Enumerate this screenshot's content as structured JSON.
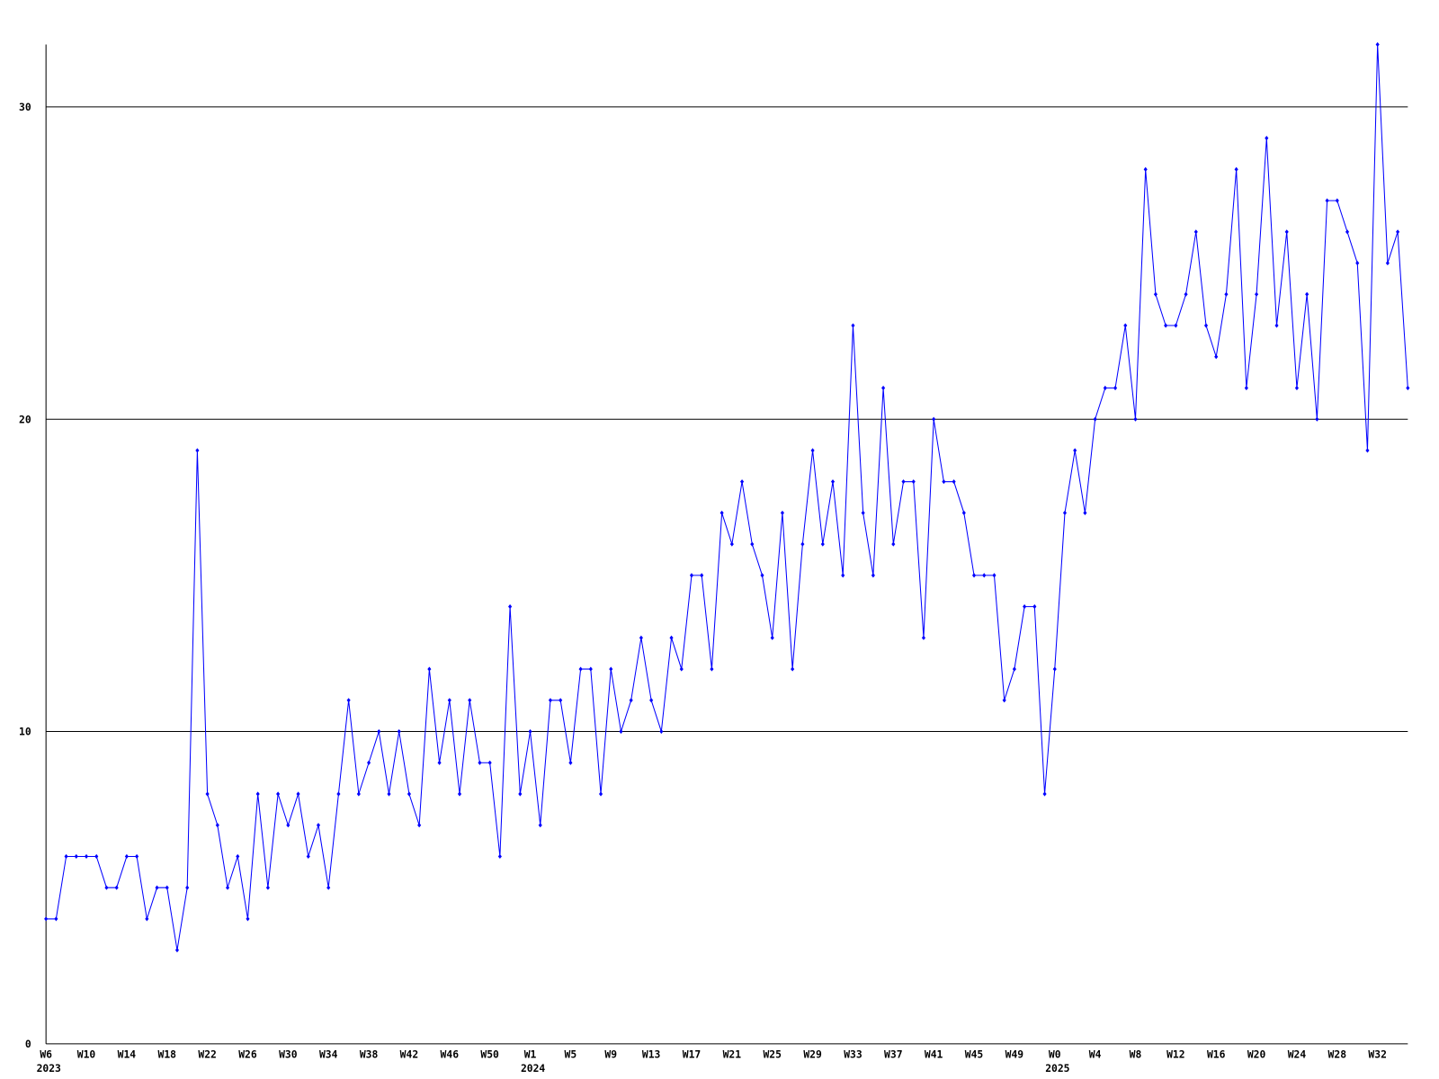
{
  "chart_data": {
    "type": "line",
    "categories": [
      "W6",
      null,
      null,
      null,
      "W10",
      null,
      null,
      null,
      "W14",
      null,
      null,
      null,
      "W18",
      null,
      null,
      null,
      "W22",
      null,
      null,
      null,
      "W26",
      null,
      null,
      null,
      "W30",
      null,
      null,
      null,
      "W34",
      null,
      null,
      null,
      "W38",
      null,
      null,
      null,
      "W42",
      null,
      null,
      null,
      "W46",
      null,
      null,
      null,
      "W50",
      null,
      null,
      null,
      "W1",
      null,
      null,
      null,
      "W5",
      null,
      null,
      null,
      "W9",
      null,
      null,
      null,
      "W13",
      null,
      null,
      null,
      "W17",
      null,
      null,
      null,
      "W21",
      null,
      null,
      null,
      "W25",
      null,
      null,
      null,
      "W29",
      null,
      null,
      null,
      "W33",
      null,
      null,
      null,
      "W37",
      null,
      null,
      null,
      "W41",
      null,
      null,
      null,
      "W45",
      null,
      null,
      null,
      "W49",
      null,
      null,
      null,
      "W0",
      null,
      null,
      null,
      "W4",
      null,
      null,
      null,
      "W8",
      null,
      null,
      null,
      "W12",
      null,
      null,
      null,
      "W16",
      null,
      null,
      null,
      "W20",
      null,
      null,
      null,
      "W24",
      null,
      null,
      null,
      "W28",
      null,
      null,
      null,
      "W32",
      null,
      null,
      null
    ],
    "years": [
      "2023",
      null,
      null,
      null,
      null,
      null,
      null,
      null,
      null,
      null,
      null,
      null,
      null,
      null,
      null,
      null,
      null,
      null,
      null,
      null,
      null,
      null,
      null,
      null,
      null,
      null,
      null,
      null,
      null,
      null,
      null,
      null,
      null,
      null,
      null,
      null,
      null,
      null,
      null,
      null,
      null,
      null,
      null,
      null,
      null,
      null,
      null,
      null,
      "2024",
      null,
      null,
      null,
      null,
      null,
      null,
      null,
      null,
      null,
      null,
      null,
      null,
      null,
      null,
      null,
      null,
      null,
      null,
      null,
      null,
      null,
      null,
      null,
      null,
      null,
      null,
      null,
      null,
      null,
      null,
      null,
      null,
      null,
      null,
      null,
      null,
      null,
      null,
      null,
      null,
      null,
      null,
      null,
      null,
      null,
      null,
      null,
      null,
      null,
      null,
      null,
      "2025",
      null,
      null,
      null,
      null,
      null,
      null,
      null,
      null,
      null,
      null,
      null,
      null,
      null,
      null,
      null,
      null,
      null,
      null,
      null,
      null,
      null,
      null,
      null,
      null,
      null,
      null,
      null,
      null,
      null,
      null,
      null,
      null,
      null,
      null,
      null
    ],
    "series": [
      {
        "color": "#0000ff",
        "values": [
          4,
          4,
          6,
          6,
          6,
          6,
          5,
          5,
          6,
          6,
          4,
          5,
          5,
          3,
          5,
          19,
          8,
          7,
          5,
          6,
          4,
          8,
          5,
          8,
          7,
          8,
          6,
          7,
          5,
          8,
          11,
          8,
          9,
          10,
          8,
          10,
          8,
          7,
          12,
          9,
          11,
          8,
          11,
          9,
          9,
          6,
          14,
          8,
          10,
          7,
          11,
          11,
          9,
          12,
          12,
          8,
          12,
          10,
          11,
          13,
          11,
          10,
          13,
          12,
          15,
          15,
          12,
          17,
          16,
          18,
          16,
          15,
          13,
          17,
          12,
          16,
          19,
          16,
          18,
          15,
          23,
          17,
          15,
          21,
          16,
          18,
          18,
          13,
          20,
          18,
          18,
          17,
          15,
          15,
          15,
          11,
          12,
          14,
          14,
          8,
          12,
          17,
          19,
          17,
          20,
          21,
          21,
          23,
          20,
          28,
          24,
          23,
          23,
          24,
          26,
          23,
          22,
          24,
          28,
          21,
          24,
          29,
          23,
          26,
          21,
          24,
          20,
          27,
          27,
          26,
          25,
          19,
          32,
          25,
          26,
          21
        ]
      }
    ],
    "ylim": [
      0,
      32
    ],
    "yticks": [
      0,
      10,
      20,
      30
    ],
    "grid": true
  }
}
